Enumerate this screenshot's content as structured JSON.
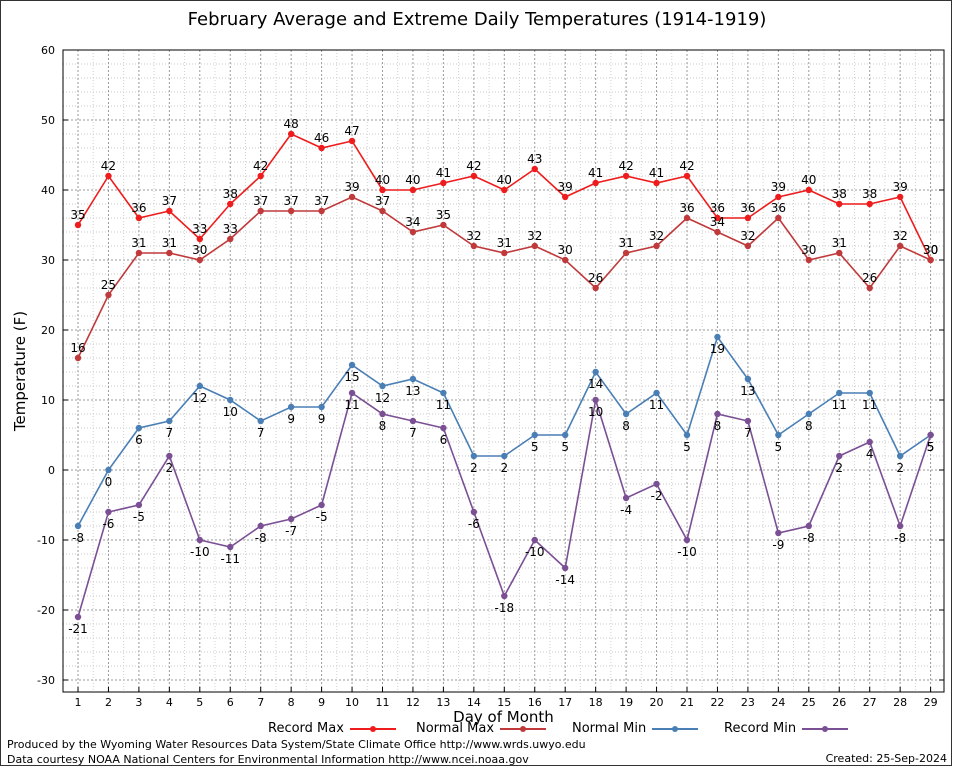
{
  "chart_data": {
    "type": "line",
    "title": "February Average and Extreme Daily Temperatures (1914-1919)",
    "xlabel": "Day of Month",
    "ylabel": "Temperature (F)",
    "ylim": [
      -30,
      60
    ],
    "yticks": [
      -30,
      -20,
      -10,
      0,
      10,
      20,
      30,
      40,
      50,
      60
    ],
    "grid": true,
    "legend_position": "bottom",
    "categories": [
      "1",
      "2",
      "3",
      "4",
      "5",
      "6",
      "7",
      "8",
      "9",
      "10",
      "11",
      "12",
      "13",
      "14",
      "15",
      "16",
      "17",
      "18",
      "19",
      "20",
      "21",
      "22",
      "23",
      "24",
      "25",
      "26",
      "27",
      "28",
      "29"
    ],
    "series": [
      {
        "name": "Record Max",
        "color": "#ee1c1c",
        "label_position": "above",
        "values": [
          35,
          42,
          36,
          37,
          33,
          38,
          42,
          48,
          46,
          47,
          40,
          40,
          41,
          42,
          40,
          43,
          39,
          41,
          42,
          41,
          42,
          36,
          36,
          39,
          40,
          38,
          38,
          39,
          30
        ]
      },
      {
        "name": "Normal Max",
        "color": "#c0393b",
        "label_position": "above",
        "values": [
          16,
          25,
          31,
          31,
          30,
          33,
          37,
          37,
          37,
          39,
          37,
          34,
          35,
          32,
          31,
          32,
          30,
          26,
          31,
          32,
          36,
          34,
          32,
          36,
          30,
          31,
          26,
          32,
          30
        ]
      },
      {
        "name": "Normal Min",
        "color": "#4a7fb5",
        "label_position": "below",
        "values": [
          -8,
          0,
          6,
          7,
          12,
          10,
          7,
          9,
          9,
          15,
          12,
          13,
          11,
          2,
          2,
          5,
          5,
          14,
          8,
          11,
          5,
          19,
          13,
          5,
          8,
          11,
          11,
          2,
          5
        ]
      },
      {
        "name": "Record Min",
        "color": "#7b4f94",
        "label_position": "below",
        "values": [
          -21,
          -6,
          -5,
          2,
          -10,
          -11,
          -8,
          -7,
          -5,
          11,
          8,
          7,
          6,
          -6,
          -18,
          -10,
          -14,
          10,
          -4,
          -2,
          -10,
          8,
          7,
          -9,
          -8,
          2,
          4,
          -8,
          5
        ]
      }
    ]
  },
  "footer": {
    "produced_by": "Produced by the Wyoming Water Resources Data System/State Climate Office http://www.wrds.uwyo.edu",
    "courtesy": "Data courtesy NOAA National Centers for Environmental Information http://www.ncei.noaa.gov",
    "created": "Created:  25-Sep-2024"
  }
}
